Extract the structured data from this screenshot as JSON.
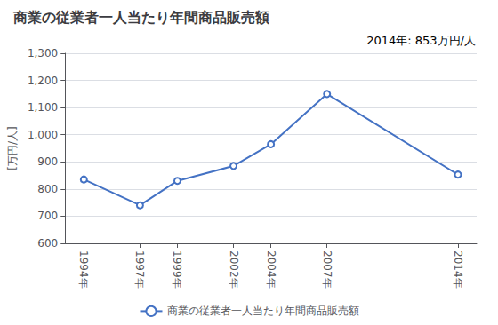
{
  "chart_data": {
    "type": "line",
    "title": "商業の従業者一人当たり年間商品販売額",
    "ylabel": "[万円/人]",
    "annotation": "2014年: 853万円/人",
    "x": [
      1994,
      1997,
      1999,
      2002,
      2004,
      2007,
      2014
    ],
    "series": [
      {
        "name": "商業の従業者一人当たり年間商品販売額",
        "color": "#4472c4",
        "marker": "circle",
        "values": [
          835,
          740,
          830,
          885,
          965,
          1150,
          853
        ]
      }
    ],
    "xlim": [
      1993,
      2015
    ],
    "xticks": [
      {
        "value": 1994,
        "label": "1994年"
      },
      {
        "value": 1997,
        "label": "1997年"
      },
      {
        "value": 1999,
        "label": "1999年"
      },
      {
        "value": 2002,
        "label": "2002年"
      },
      {
        "value": 2004,
        "label": "2004年"
      },
      {
        "value": 2007,
        "label": "2007年"
      },
      {
        "value": 2014,
        "label": "2014年"
      }
    ],
    "ylim": [
      600,
      1300
    ],
    "yticks": [
      600,
      700,
      800,
      900,
      {
        "value": 1000,
        "label": "1,000"
      },
      {
        "value": 1100,
        "label": "1,100"
      },
      {
        "value": 1200,
        "label": "1,200"
      },
      {
        "value": 1300,
        "label": "1,300"
      }
    ],
    "grid": true,
    "legend": "bottom"
  }
}
